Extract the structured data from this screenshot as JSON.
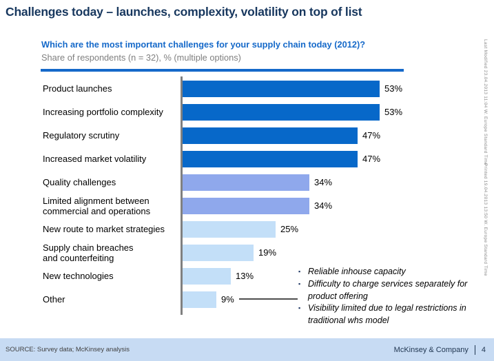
{
  "slide": {
    "title": "Challenges today – launches, complexity, volatility on top of list"
  },
  "exhibit": {
    "question": "Which are the most important challenges for your supply chain today (2012)?",
    "subtitle": "Share of respondents (n = 32), % (multiple options)"
  },
  "chart_data": {
    "type": "bar",
    "orientation": "horizontal",
    "title": "Which are the most important challenges for your supply chain today (2012)?",
    "unit": "%",
    "sample_size": "n = 32",
    "xlabel": "",
    "ylabel": "",
    "xlim": [
      0,
      60
    ],
    "grid": false,
    "legend": "none",
    "categories": [
      "Product launches",
      "Increasing portfolio complexity",
      "Regulatory scrutiny",
      "Increased market volatility",
      "Quality challenges",
      "Limited alignment between commercial and operations",
      "New route to market strategies",
      "Supply chain breaches and counterfeiting",
      "New technologies",
      "Other"
    ],
    "values": [
      53,
      53,
      47,
      47,
      34,
      34,
      25,
      19,
      13,
      9
    ],
    "bars": [
      {
        "label_lines": [
          "Product launches"
        ],
        "value": 53,
        "tier": "dark"
      },
      {
        "label_lines": [
          "Increasing portfolio complexity"
        ],
        "value": 53,
        "tier": "dark"
      },
      {
        "label_lines": [
          "Regulatory scrutiny"
        ],
        "value": 47,
        "tier": "dark"
      },
      {
        "label_lines": [
          "Increased market volatility"
        ],
        "value": 47,
        "tier": "dark"
      },
      {
        "label_lines": [
          "Quality challenges"
        ],
        "value": 34,
        "tier": "medium"
      },
      {
        "label_lines": [
          "Limited alignment between",
          "commercial and operations"
        ],
        "value": 34,
        "tier": "medium"
      },
      {
        "label_lines": [
          "New route to market strategies"
        ],
        "value": 25,
        "tier": "light"
      },
      {
        "label_lines": [
          "Supply chain breaches",
          "and counterfeiting"
        ],
        "value": 19,
        "tier": "light"
      },
      {
        "label_lines": [
          "New technologies"
        ],
        "value": 13,
        "tier": "light"
      },
      {
        "label_lines": [
          "Other"
        ],
        "value": 9,
        "tier": "light"
      }
    ],
    "colors": {
      "dark": "#0768C9",
      "medium": "#8FA8EC",
      "light": "#C3DFF8"
    }
  },
  "annotations": {
    "other_bullets": [
      "Reliable inhouse capacity",
      "Difficulty to charge services separately for product offering",
      "Visibility limited due to legal restrictions in traditional whs model"
    ]
  },
  "sidebar": {
    "last_modified": "Last Modified 23.04.2013 11:04 W. Europe Standard Time",
    "printed": "Printed 19.04.2013 13:50 W. Europe Standard Time"
  },
  "footer": {
    "source": "SOURCE: Survey data; McKinsey analysis",
    "brand": "McKinsey & Company",
    "page": "4"
  }
}
